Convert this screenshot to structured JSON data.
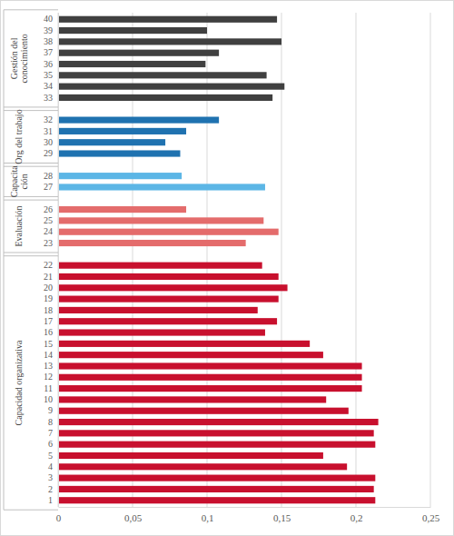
{
  "chart_data": {
    "type": "bar",
    "orientation": "horizontal",
    "grid": true,
    "categories": [
      "1",
      "2",
      "3",
      "4",
      "5",
      "6",
      "7",
      "8",
      "9",
      "10",
      "11",
      "12",
      "13",
      "14",
      "15",
      "16",
      "17",
      "18",
      "19",
      "20",
      "21",
      "22",
      "23",
      "24",
      "25",
      "26",
      "27",
      "28",
      "29",
      "30",
      "31",
      "32",
      "33",
      "34",
      "35",
      "36",
      "37",
      "38",
      "39",
      "40"
    ],
    "xlim": [
      0,
      0.25
    ],
    "xticks": [
      {
        "value": 0,
        "label": "0"
      },
      {
        "value": 0.05,
        "label": "0,05"
      },
      {
        "value": 0.1,
        "label": "0,1"
      },
      {
        "value": 0.15,
        "label": "0,15"
      },
      {
        "value": 0.2,
        "label": "0,2"
      },
      {
        "value": 0.25,
        "label": "0,25"
      }
    ],
    "series": [
      {
        "name": "Capacidad organizativa",
        "color": "#c8102e",
        "values": [
          0.213,
          0.212,
          0.213,
          0.194,
          0.178,
          0.213,
          0.212,
          0.215,
          0.195,
          0.18,
          0.204,
          0.204,
          0.204,
          0.178,
          0.169,
          0.139,
          0.147,
          0.134,
          0.148,
          0.154,
          0.148,
          0.137,
          null,
          null,
          null,
          null,
          null,
          null,
          null,
          null,
          null,
          null,
          null,
          null,
          null,
          null,
          null,
          null,
          null,
          null
        ]
      },
      {
        "name": "Evaluación",
        "color": "#e46c6c",
        "values": [
          null,
          null,
          null,
          null,
          null,
          null,
          null,
          null,
          null,
          null,
          null,
          null,
          null,
          null,
          null,
          null,
          null,
          null,
          null,
          null,
          null,
          null,
          0.126,
          0.148,
          0.138,
          0.086,
          null,
          null,
          null,
          null,
          null,
          null,
          null,
          null,
          null,
          null,
          null,
          null,
          null,
          null
        ]
      },
      {
        "name": "Capacita\nción",
        "color": "#5cb6e6",
        "values": [
          null,
          null,
          null,
          null,
          null,
          null,
          null,
          null,
          null,
          null,
          null,
          null,
          null,
          null,
          null,
          null,
          null,
          null,
          null,
          null,
          null,
          null,
          null,
          null,
          null,
          null,
          0.139,
          0.083,
          null,
          null,
          null,
          null,
          null,
          null,
          null,
          null,
          null,
          null,
          null,
          null
        ]
      },
      {
        "name": "Org del trabajo",
        "color": "#1f72b0",
        "values": [
          null,
          null,
          null,
          null,
          null,
          null,
          null,
          null,
          null,
          null,
          null,
          null,
          null,
          null,
          null,
          null,
          null,
          null,
          null,
          null,
          null,
          null,
          null,
          null,
          null,
          null,
          null,
          null,
          0.082,
          0.072,
          0.086,
          0.108,
          null,
          null,
          null,
          null,
          null,
          null,
          null,
          null
        ]
      },
      {
        "name": "Gestión del\nconocimiento",
        "color": "#404040",
        "values": [
          null,
          null,
          null,
          null,
          null,
          null,
          null,
          null,
          null,
          null,
          null,
          null,
          null,
          null,
          null,
          null,
          null,
          null,
          null,
          null,
          null,
          null,
          null,
          null,
          null,
          null,
          null,
          null,
          null,
          null,
          null,
          null,
          0.144,
          0.152,
          0.14,
          0.099,
          0.108,
          0.15,
          0.1,
          0.147
        ]
      }
    ]
  }
}
